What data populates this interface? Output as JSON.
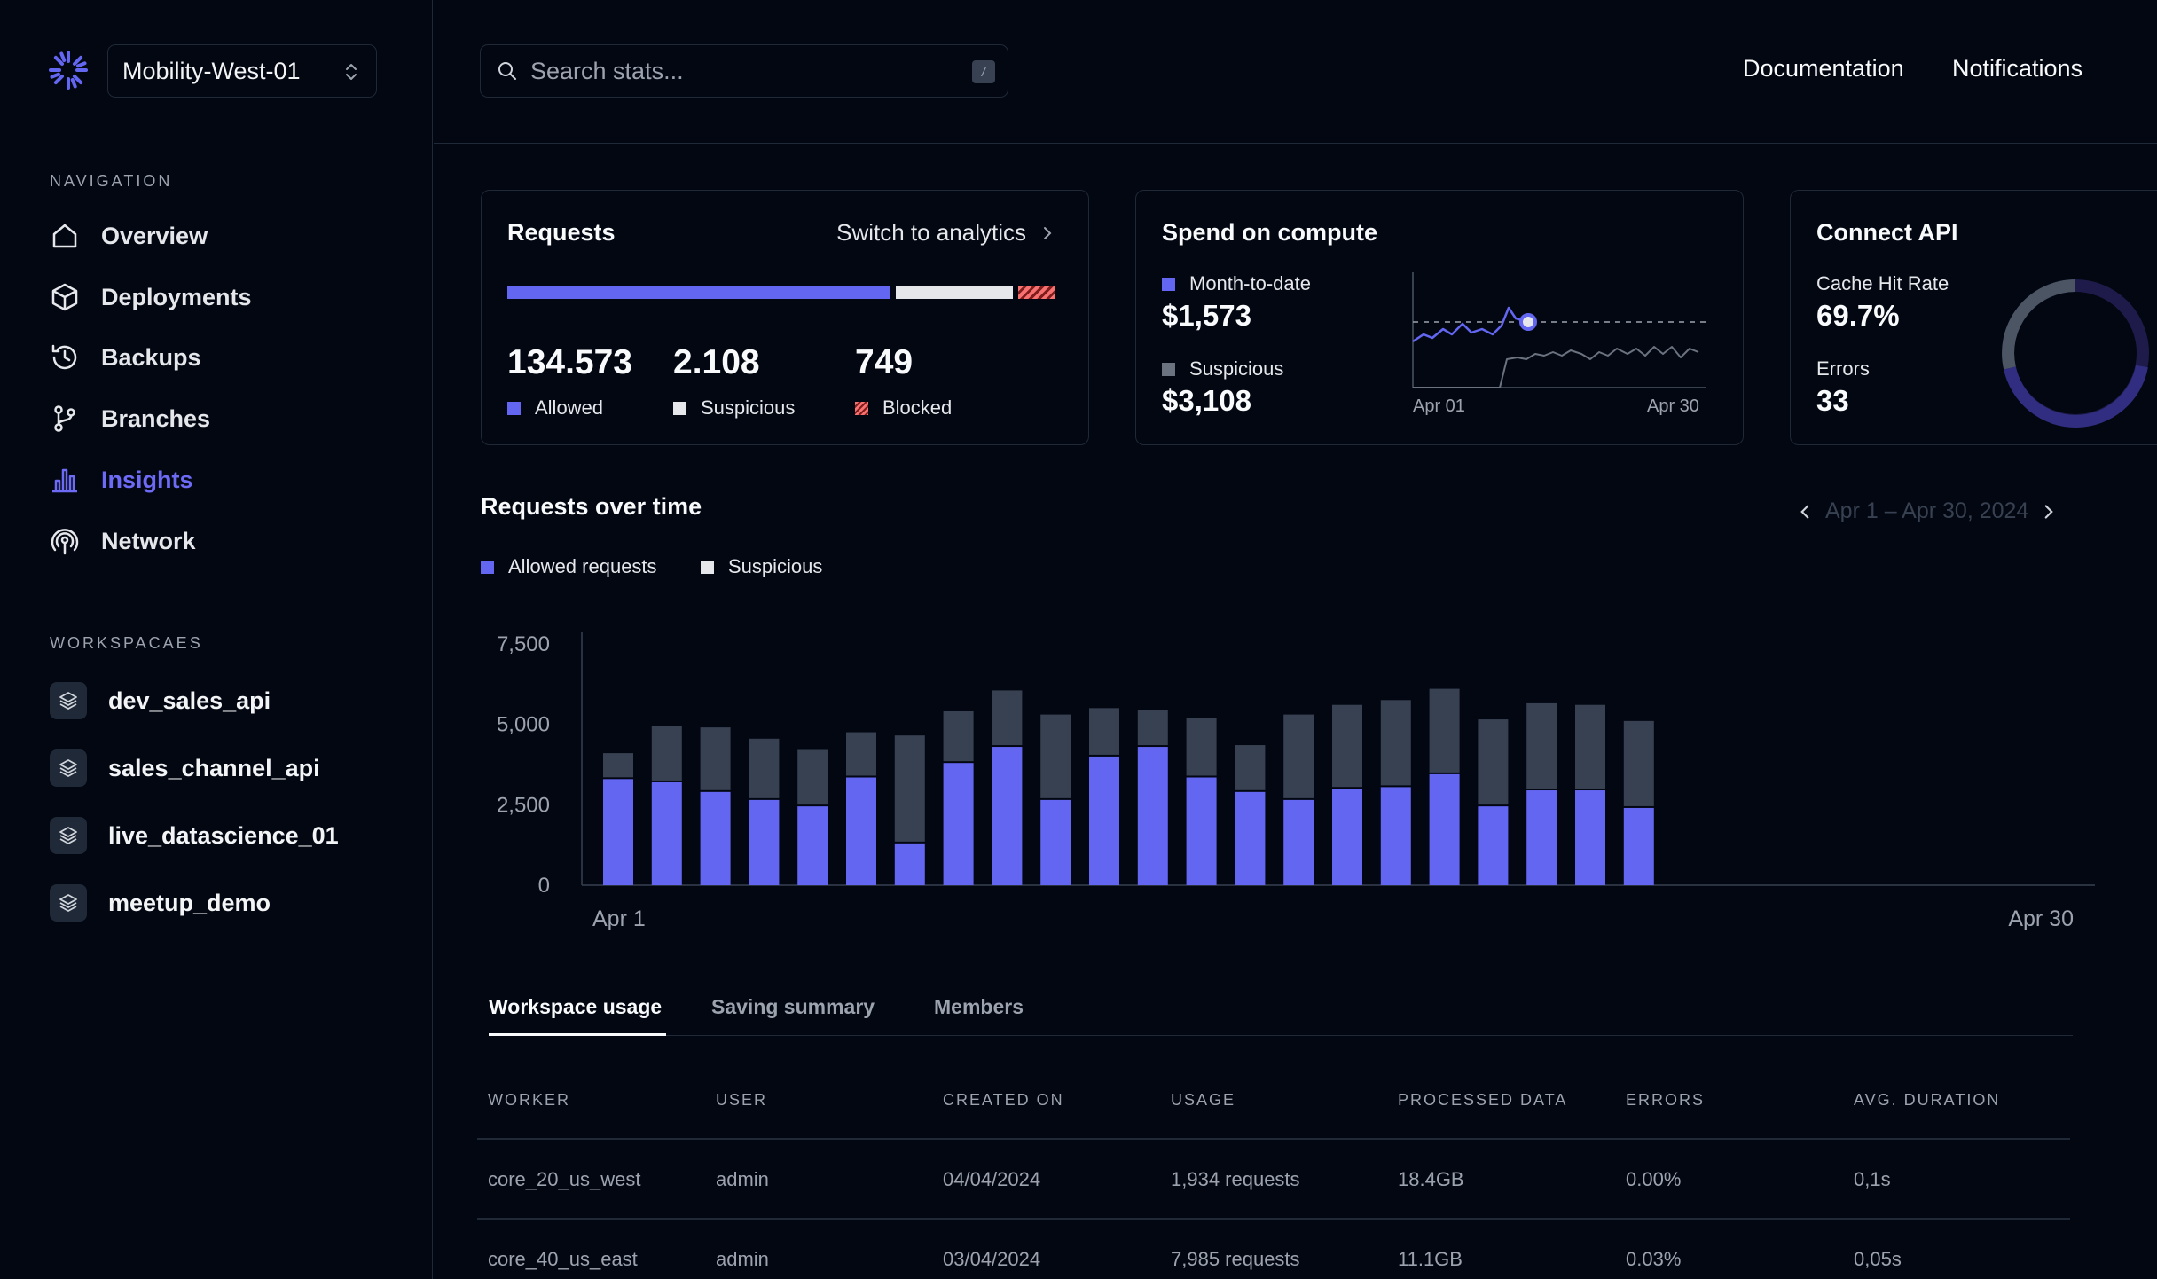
{
  "workspace": {
    "name": "Mobility-West-01"
  },
  "sidebar": {
    "navigation_label": "NAVIGATION",
    "nav_items": [
      {
        "label": "Overview",
        "icon": "home-icon"
      },
      {
        "label": "Deployments",
        "icon": "cube-icon"
      },
      {
        "label": "Backups",
        "icon": "history-icon"
      },
      {
        "label": "Branches",
        "icon": "git-branch-icon"
      },
      {
        "label": "Insights",
        "icon": "bar-chart-icon",
        "active": true
      },
      {
        "label": "Network",
        "icon": "antenna-icon"
      }
    ],
    "workspaces_label": "WORKSPACAES",
    "workspaces": [
      {
        "label": "dev_sales_api"
      },
      {
        "label": "sales_channel_api"
      },
      {
        "label": "live_datascience_01"
      },
      {
        "label": "meetup_demo"
      }
    ]
  },
  "header": {
    "search_placeholder": "Search stats...",
    "search_shortcut": "/",
    "links": [
      "Documentation",
      "Notifications"
    ]
  },
  "requests_card": {
    "title": "Requests",
    "switch_label": "Switch to analytics",
    "allowed": {
      "value": "134.573",
      "label": "Allowed"
    },
    "suspicious": {
      "value": "2.108",
      "label": "Suspicious"
    },
    "blocked": {
      "value": "749",
      "label": "Blocked"
    }
  },
  "spend_card": {
    "title": "Spend on compute",
    "mtd": {
      "label": "Month-to-date",
      "value": "$1,573"
    },
    "suspicious": {
      "label": "Suspicious",
      "value": "$3,108"
    },
    "x_start": "Apr 01",
    "x_end": "Apr 30"
  },
  "api_card": {
    "title": "Connect API",
    "cache_label": "Cache Hit Rate",
    "cache_value": "69.7%",
    "errors_label": "Errors",
    "errors_value": "33"
  },
  "chart_section": {
    "title": "Requests over time",
    "date_range": "Apr 1 – Apr 30, 2024",
    "legend": [
      "Allowed requests",
      "Suspicious"
    ]
  },
  "chart_data": {
    "type": "bar",
    "stacked": true,
    "x_start_label": "Apr 1",
    "x_end_label": "Apr 30",
    "yticks": [
      "7,500",
      "5,000",
      "2,500",
      "0"
    ],
    "ylim": [
      0,
      7500
    ],
    "colors": {
      "allowed": "#6366f1",
      "suspicious": "#374151"
    },
    "series": [
      {
        "name": "Allowed requests",
        "values": [
          3300,
          3200,
          2900,
          2650,
          2450,
          3350,
          1300,
          3800,
          4300,
          2650,
          4000,
          4300,
          3350,
          2900,
          2650,
          3000,
          3050,
          3450,
          2450,
          2950,
          2950,
          2400
        ]
      },
      {
        "name": "Suspicious",
        "values": [
          750,
          1700,
          1950,
          1850,
          1700,
          1350,
          3300,
          1550,
          1700,
          2600,
          1450,
          1100,
          1800,
          1400,
          2600,
          2550,
          2650,
          2600,
          2650,
          2650,
          2600,
          2650
        ]
      }
    ]
  },
  "tabs": [
    "Workspace usage",
    "Saving summary",
    "Members"
  ],
  "table": {
    "headers": [
      "WORKER",
      "USER",
      "CREATED ON",
      "USAGE",
      "PROCESSED DATA",
      "ERRORS",
      "AVG. DURATION"
    ],
    "rows": [
      [
        "core_20_us_west",
        "admin",
        "04/04/2024",
        "1,934 requests",
        "18.4GB",
        "0.00%",
        "0,1s"
      ],
      [
        "core_40_us_east",
        "admin",
        "03/04/2024",
        "7,985 requests",
        "11.1GB",
        "0.03%",
        "0,05s"
      ]
    ]
  }
}
